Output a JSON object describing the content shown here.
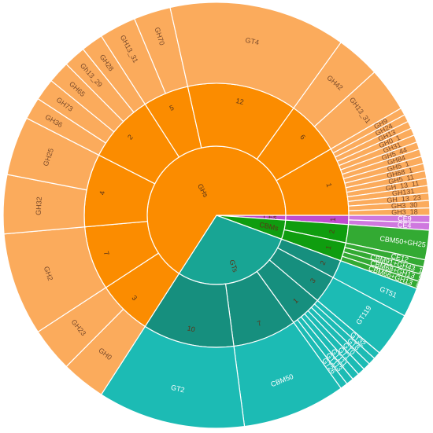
{
  "chart_data": {
    "type": "sunburst",
    "root": "",
    "start_angle_deg": 0,
    "direction": "clockwise",
    "colors": {
      "GHs": {
        "ring1": "#fb8c00",
        "ring2": "#fb8c00",
        "ring3": "#fbab5c"
      },
      "GTs": {
        "ring1": "#18a594",
        "ring2": "#168f7e",
        "ring3": "#1cbbb4"
      },
      "CBMs": {
        "ring1": "#0f9d0f",
        "ring2": "#0f9d0f",
        "ring3": "#33aa33"
      },
      "CEs": {
        "ring1": "#c04ccf",
        "ring2": "#c04ccf",
        "ring3": "#cf78df"
      }
    },
    "families": [
      {
        "name": "CEs",
        "children": [
          {
            "name": "1",
            "children": [
              {
                "name": "CE9",
                "value": 1
              },
              {
                "name": "CE4",
                "value": 1
              }
            ]
          }
        ]
      },
      {
        "name": "CBMs",
        "children": [
          {
            "name": "2",
            "children": [
              {
                "name": "CBM50+GH25",
                "value": 4
              }
            ]
          },
          {
            "name": "1",
            "children": [
              {
                "name": "CE12",
                "value": 1
              },
              {
                "name": "CBM91+GH43_11",
                "value": 1
              },
              {
                "name": "CBM68+GH13_9",
                "value": 1
              },
              {
                "name": "CBM66+GH13_8",
                "value": 1
              }
            ]
          }
        ]
      },
      {
        "name": "GTs",
        "children": [
          {
            "name": "2",
            "children": [
              {
                "name": "GT51",
                "value": 4
              }
            ]
          },
          {
            "name": "3",
            "children": [
              {
                "name": "GT119",
                "value": 6
              }
            ]
          },
          {
            "name": "1",
            "children": [
              {
                "name": "GT32",
                "value": 1
              },
              {
                "name": "GT8",
                "value": 1
              },
              {
                "name": "GT0",
                "value": 1
              },
              {
                "name": "GT1",
                "value": 1
              },
              {
                "name": "GT111",
                "value": 1
              },
              {
                "name": "GT113",
                "value": 1
              },
              {
                "name": "GT26",
                "value": 1
              }
            ]
          },
          {
            "name": "7",
            "children": [
              {
                "name": "CBM50",
                "value": 14
              }
            ]
          },
          {
            "name": "10",
            "children": [
              {
                "name": "GT2",
                "value": 20
              }
            ]
          }
        ]
      },
      {
        "name": "GHs",
        "children": [
          {
            "name": "3",
            "children": [
              {
                "name": "GH0",
                "value": 6
              },
              {
                "name": "GH23",
                "value": 6
              }
            ]
          },
          {
            "name": "7",
            "children": [
              {
                "name": "GH2",
                "value": 14
              }
            ]
          },
          {
            "name": "4",
            "children": [
              {
                "name": "GH32",
                "value": 8
              },
              {
                "name": "GH25",
                "value": 8
              }
            ]
          },
          {
            "name": "2",
            "children": [
              {
                "name": "GH36",
                "value": 3
              },
              {
                "name": "GH73",
                "value": 3
              },
              {
                "name": "GH65",
                "value": 3
              },
              {
                "name": "Gh13_29",
                "value": 3
              },
              {
                "name": "GH28",
                "value": 3
              }
            ]
          },
          {
            "name": "5",
            "children": [
              {
                "name": "GH13_31",
                "value": 5
              },
              {
                "name": "GH70",
                "value": 5
              }
            ]
          },
          {
            "name": "12",
            "children": [
              {
                "name": "GT4",
                "value": 24
              }
            ]
          },
          {
            "name": "6",
            "children": [
              {
                "name": "GH42",
                "value": 6
              },
              {
                "name": "GH13_31",
                "value": 6
              }
            ]
          },
          {
            "name": "1",
            "children": [
              {
                "name": "GH9",
                "value": 1
              },
              {
                "name": "GH24",
                "value": 1
              },
              {
                "name": "GH13",
                "value": 1
              },
              {
                "name": "GH0_1",
                "value": 1
              },
              {
                "name": "GH31",
                "value": 1
              },
              {
                "name": "GH5_44",
                "value": 1
              },
              {
                "name": "GH84",
                "value": 1
              },
              {
                "name": "GH5_1",
                "value": 1
              },
              {
                "name": "GH68_1",
                "value": 1
              },
              {
                "name": "GH5_11",
                "value": 1
              },
              {
                "name": "GH_13_11",
                "value": 1
              },
              {
                "name": "GH131",
                "value": 1
              },
              {
                "name": "GH_13_23",
                "value": 1
              },
              {
                "name": "GH3_30",
                "value": 1
              },
              {
                "name": "GH3_18",
                "value": 1
              }
            ]
          }
        ]
      }
    ]
  }
}
